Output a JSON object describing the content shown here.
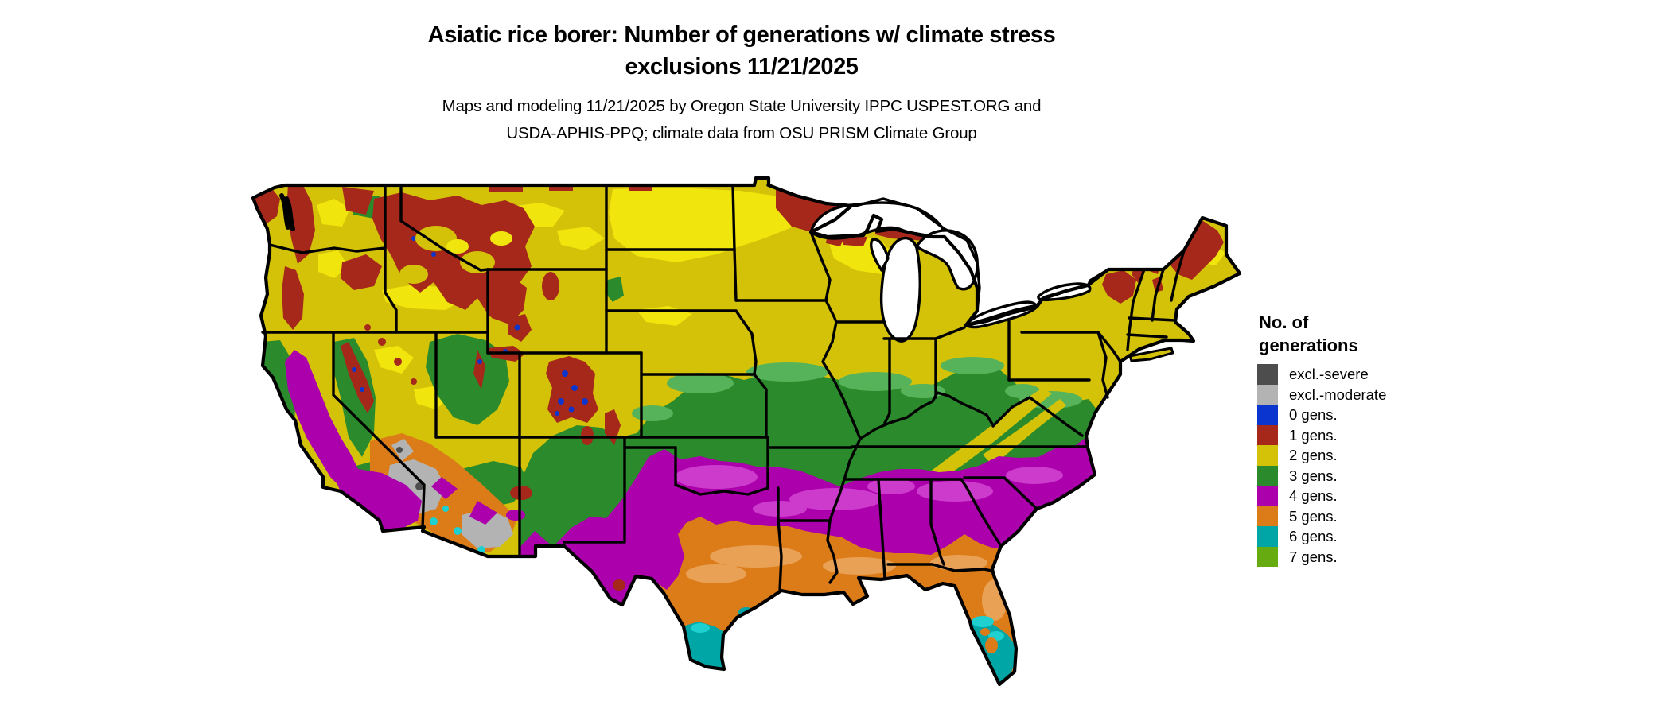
{
  "header": {
    "title_line1": "Asiatic rice borer: Number of generations w/ climate stress",
    "title_line2": "exclusions 11/21/2025",
    "subtitle_line1": "Maps and modeling 11/21/2025 by Oregon State University IPPC USPEST.ORG and",
    "subtitle_line2": "USDA-APHIS-PPQ; climate data from OSU PRISM Climate Group"
  },
  "legend": {
    "title_line1": "No. of",
    "title_line2": "generations",
    "items": [
      {
        "label": "excl.-severe",
        "color": "#4d4d4d"
      },
      {
        "label": "excl.-moderate",
        "color": "#b3b3b3"
      },
      {
        "label": "0 gens.",
        "color": "#0a35cf"
      },
      {
        "label": "1 gens.",
        "color": "#a5281b"
      },
      {
        "label": "2 gens.",
        "color": "#d4c208"
      },
      {
        "label": "3 gens.",
        "color": "#2b8a2b"
      },
      {
        "label": "4 gens.",
        "color": "#ab00ab"
      },
      {
        "label": "5 gens.",
        "color": "#dc7c18"
      },
      {
        "label": "6 gens.",
        "color": "#00a5a5"
      },
      {
        "label": "7 gens.",
        "color": "#66ab10"
      }
    ]
  },
  "map": {
    "type": "raster choropleth map",
    "region": "Continental United States",
    "border_color": "#000000"
  }
}
